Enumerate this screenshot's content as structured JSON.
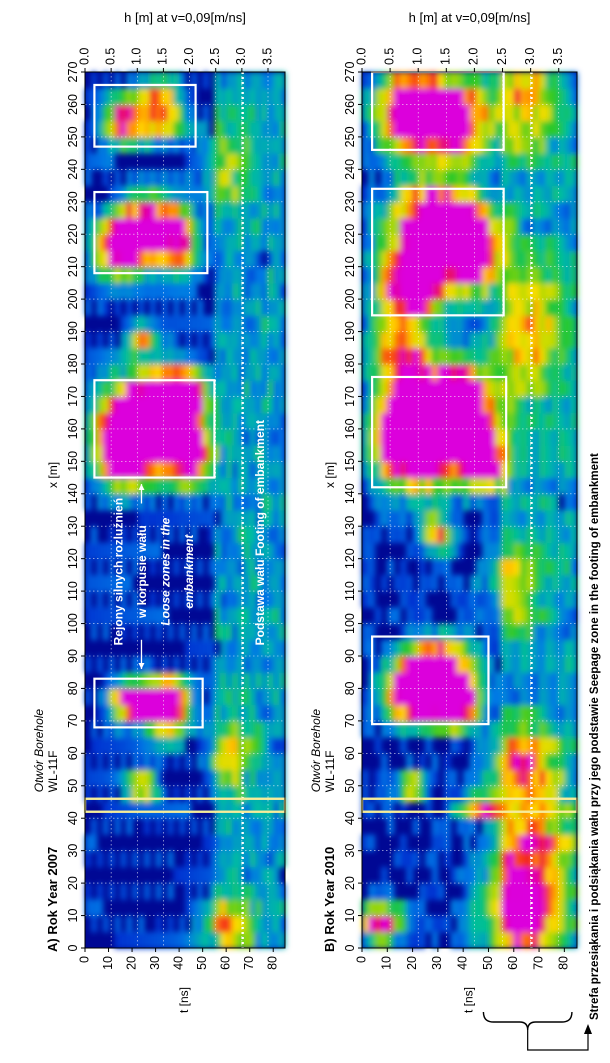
{
  "chart_data": [
    {
      "type": "heatmap",
      "panel_label": "A) Rok Year 2007",
      "top_axis_label": "h [m] at v=0,09[m/ns]",
      "x_axis_label": "x [m]",
      "y_axis_label": "t [ns]",
      "x_range": [
        0,
        270
      ],
      "x_ticks": [
        "0",
        "10",
        "20",
        "30",
        "40",
        "50",
        "60",
        "70",
        "80",
        "90",
        "100",
        "110",
        "120",
        "130",
        "140",
        "150",
        "160",
        "170",
        "180",
        "190",
        "200",
        "210",
        "220",
        "230",
        "240",
        "250",
        "260",
        "270"
      ],
      "t_range": [
        0,
        85
      ],
      "t_ticks": [
        "0",
        "10",
        "20",
        "30",
        "40",
        "50",
        "60",
        "70",
        "80"
      ],
      "h_ticks": [
        "0.0",
        "0.5",
        "1.0",
        "1.5",
        "2.0",
        "2.5",
        "3.0",
        "3.5"
      ],
      "borehole": {
        "label_line1": "Otwór Borehole",
        "label_line2": "WL-11F",
        "x": [
          42,
          46
        ]
      },
      "boxes": [
        {
          "x": [
            68,
            83
          ],
          "t": [
            4,
            50
          ]
        },
        {
          "x": [
            145,
            175
          ],
          "t": [
            4,
            55
          ]
        },
        {
          "x": [
            208,
            233
          ],
          "t": [
            4,
            52
          ]
        },
        {
          "x": [
            247,
            266
          ],
          "t": [
            4,
            47
          ]
        }
      ],
      "footing_line_t": 67,
      "annotations": {
        "loose_zones": [
          "Rejony silnych rozluźnień",
          "w korpusie wału",
          "Loose zones in the",
          "embankment"
        ],
        "footing": "Podstawa wału Footing of embankment"
      },
      "anomalies": [
        {
          "x": 76,
          "t": 22,
          "sx": 4,
          "st": 7,
          "v": 1.3
        },
        {
          "x": 72,
          "t": 35,
          "sx": 5,
          "st": 6,
          "v": 0.9
        },
        {
          "x": 79,
          "t": 36,
          "sx": 3,
          "st": 5,
          "v": 0.8
        },
        {
          "x": 50,
          "t": 24,
          "sx": 3,
          "st": 5,
          "v": 0.6
        },
        {
          "x": 155,
          "t": 18,
          "sx": 8,
          "st": 9,
          "v": 1.4
        },
        {
          "x": 165,
          "t": 30,
          "sx": 9,
          "st": 11,
          "v": 1.6
        },
        {
          "x": 152,
          "t": 44,
          "sx": 6,
          "st": 6,
          "v": 1.1
        },
        {
          "x": 170,
          "t": 42,
          "sx": 5,
          "st": 6,
          "v": 1.0
        },
        {
          "x": 188,
          "t": 24,
          "sx": 3,
          "st": 4,
          "v": 0.6
        },
        {
          "x": 215,
          "t": 14,
          "sx": 6,
          "st": 7,
          "v": 0.9
        },
        {
          "x": 222,
          "t": 26,
          "sx": 7,
          "st": 9,
          "v": 1.1
        },
        {
          "x": 218,
          "t": 40,
          "sx": 6,
          "st": 5,
          "v": 0.8
        },
        {
          "x": 255,
          "t": 16,
          "sx": 5,
          "st": 6,
          "v": 0.8
        },
        {
          "x": 258,
          "t": 32,
          "sx": 6,
          "st": 7,
          "v": 0.8
        },
        {
          "x": 8,
          "t": 60,
          "sx": 6,
          "st": 8,
          "v": 0.45
        },
        {
          "x": 60,
          "t": 62,
          "sx": 8,
          "st": 8,
          "v": 0.35
        },
        {
          "x": 240,
          "t": 60,
          "sx": 10,
          "st": 8,
          "v": 0.3
        }
      ]
    },
    {
      "type": "heatmap",
      "panel_label": "B) Rok Year 2010",
      "top_axis_label": "h [m] at v=0,09[m/ns]",
      "x_axis_label": "x [m]",
      "y_axis_label": "t [ns]",
      "x_range": [
        0,
        270
      ],
      "x_ticks": [
        "0",
        "10",
        "20",
        "30",
        "40",
        "50",
        "60",
        "70",
        "80",
        "90",
        "100",
        "110",
        "120",
        "130",
        "140",
        "150",
        "160",
        "170",
        "180",
        "190",
        "200",
        "210",
        "220",
        "230",
        "240",
        "250",
        "260",
        "270"
      ],
      "t_range": [
        0,
        85
      ],
      "t_ticks": [
        "0",
        "10",
        "20",
        "30",
        "40",
        "50",
        "60",
        "70",
        "80"
      ],
      "h_ticks": [
        "0.0",
        "0.5",
        "1.0",
        "1.5",
        "2.0",
        "2.5",
        "3.0",
        "3.5"
      ],
      "borehole": {
        "label_line1": "Otwór Borehole",
        "label_line2": "WL-11F",
        "x": [
          42,
          46
        ]
      },
      "boxes": [
        {
          "x": [
            69,
            96
          ],
          "t": [
            4,
            50
          ]
        },
        {
          "x": [
            142,
            176
          ],
          "t": [
            4,
            57
          ]
        },
        {
          "x": [
            195,
            234
          ],
          "t": [
            4,
            56
          ]
        },
        {
          "x": [
            246,
            270
          ],
          "t": [
            4,
            56
          ]
        }
      ],
      "footing_line_t": 67,
      "annotations": {
        "seepage": "Strefa przesiąkania i podsiąkania wału przy jego podstawie Seepage zone in the footing of embankment"
      },
      "anomalies": [
        {
          "x": 78,
          "t": 22,
          "sx": 6,
          "st": 8,
          "v": 1.4
        },
        {
          "x": 86,
          "t": 30,
          "sx": 6,
          "st": 9,
          "v": 1.2
        },
        {
          "x": 75,
          "t": 38,
          "sx": 5,
          "st": 6,
          "v": 1.0
        },
        {
          "x": 158,
          "t": 20,
          "sx": 10,
          "st": 10,
          "v": 1.6
        },
        {
          "x": 165,
          "t": 36,
          "sx": 10,
          "st": 11,
          "v": 1.5
        },
        {
          "x": 150,
          "t": 48,
          "sx": 6,
          "st": 6,
          "v": 1.0
        },
        {
          "x": 205,
          "t": 20,
          "sx": 7,
          "st": 9,
          "v": 1.1
        },
        {
          "x": 222,
          "t": 30,
          "sx": 10,
          "st": 12,
          "v": 1.3
        },
        {
          "x": 215,
          "t": 45,
          "sx": 8,
          "st": 6,
          "v": 0.9
        },
        {
          "x": 258,
          "t": 20,
          "sx": 8,
          "st": 9,
          "v": 1.4
        },
        {
          "x": 255,
          "t": 38,
          "sx": 8,
          "st": 9,
          "v": 1.0
        },
        {
          "x": 185,
          "t": 15,
          "sx": 8,
          "st": 8,
          "v": 0.7
        },
        {
          "x": 50,
          "t": 20,
          "sx": 3,
          "st": 4,
          "v": 0.7
        },
        {
          "x": 44,
          "t": 47,
          "sx": 2,
          "st": 6,
          "v": 1.0
        },
        {
          "x": 8,
          "t": 8,
          "sx": 4,
          "st": 6,
          "v": 0.9
        },
        {
          "x": 10,
          "t": 62,
          "sx": 10,
          "st": 10,
          "v": 0.8
        },
        {
          "x": 30,
          "t": 68,
          "sx": 12,
          "st": 10,
          "v": 0.6
        },
        {
          "x": 58,
          "t": 63,
          "sx": 8,
          "st": 10,
          "v": 0.55
        },
        {
          "x": 128,
          "t": 30,
          "sx": 4,
          "st": 4,
          "v": 0.7
        },
        {
          "x": 112,
          "t": 60,
          "sx": 10,
          "st": 8,
          "v": 0.4
        },
        {
          "x": 190,
          "t": 65,
          "sx": 14,
          "st": 10,
          "v": 0.5
        },
        {
          "x": 260,
          "t": 65,
          "sx": 10,
          "st": 10,
          "v": 0.45
        }
      ]
    }
  ]
}
